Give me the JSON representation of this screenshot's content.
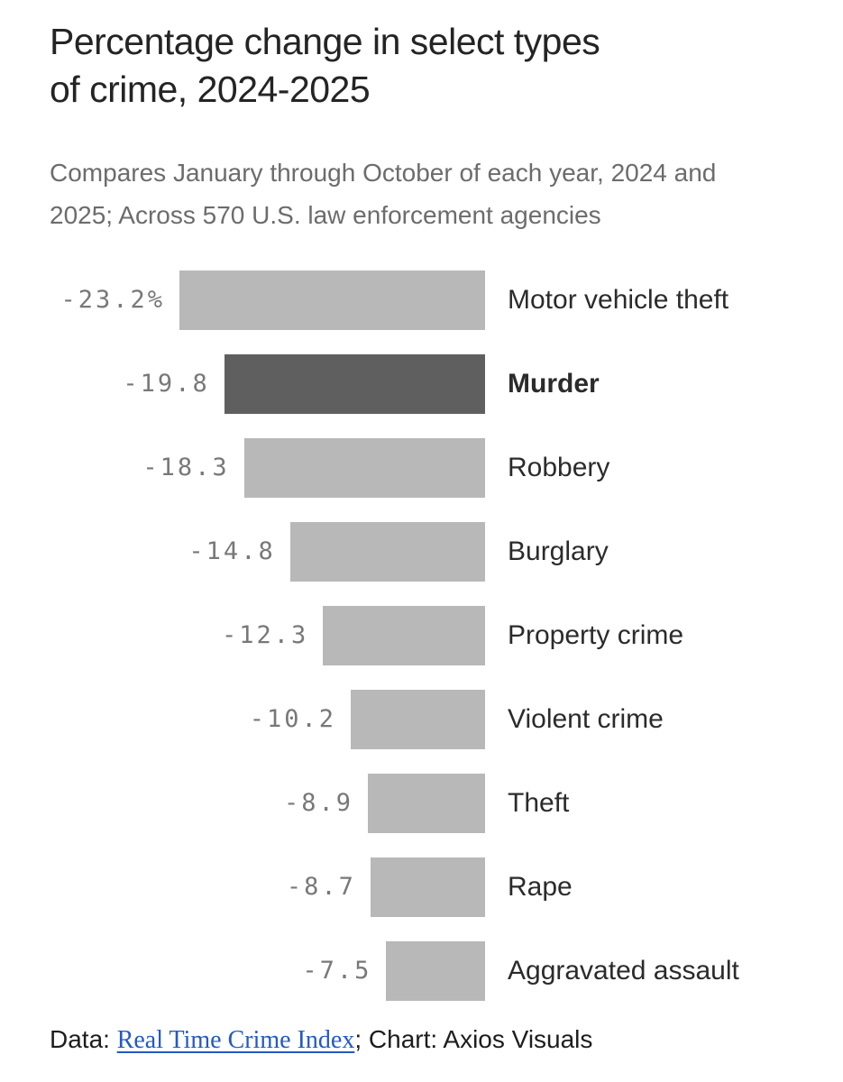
{
  "header": {
    "title": "Percentage change in select types of crime, 2024-2025",
    "title_lines": [
      "Percentage change in select types",
      "of crime, 2024-2025"
    ],
    "subtitle": "Compares January through October of each year, 2024 and 2025; Across 570 U.S. law enforcement agencies",
    "subtitle_lines": [
      "Compares January through October of each year, 2024 and",
      "2025; Across 570 U.S. law enforcement agencies"
    ]
  },
  "chart_data": {
    "type": "bar",
    "orientation": "horizontal",
    "categories": [
      "Motor vehicle theft",
      "Murder",
      "Robbery",
      "Burglary",
      "Property crime",
      "Violent crime",
      "Theft",
      "Rape",
      "Aggravated assault"
    ],
    "values": [
      -23.2,
      -19.8,
      -18.3,
      -14.8,
      -12.3,
      -10.2,
      -8.9,
      -8.7,
      -7.5
    ],
    "value_labels": [
      "-23.2%",
      "-19.8",
      "-18.3",
      "-14.8",
      "-12.3",
      "-10.2",
      "-8.9",
      "-8.7",
      "-7.5"
    ],
    "highlight_index": 1,
    "highlight_category": "Murder",
    "xlim": [
      -23.2,
      0
    ],
    "grid": false,
    "legend": false,
    "bars_right_aligned": true,
    "bar_color": "#b8b8b8",
    "highlight_color": "#5f5f5f"
  },
  "footer": {
    "data_prefix": "Data: ",
    "source_link": "Real Time Crime Index",
    "rest": "; Chart: Axios Visuals"
  },
  "colors": {
    "title": "#242424",
    "subtitle": "#6c6c6c",
    "value_label": "#787878",
    "category_label": "#2b2b2b",
    "bar": "#b8b8b8",
    "bar_highlight": "#5f5f5f",
    "link": "#2359c4",
    "footer_text": "#1d1d1d",
    "background": "#ffffff"
  }
}
